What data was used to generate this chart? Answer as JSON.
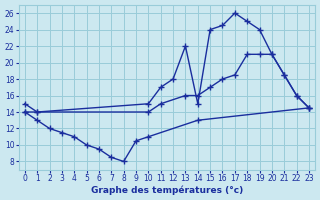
{
  "xlabel": "Graphe des températures (°c)",
  "background_color": "#cce8f0",
  "grid_color": "#99ccd9",
  "line_color": "#1a2e9e",
  "xlim": [
    -0.5,
    23.5
  ],
  "ylim": [
    7,
    27
  ],
  "xticks": [
    0,
    1,
    2,
    3,
    4,
    5,
    6,
    7,
    8,
    9,
    10,
    11,
    12,
    13,
    14,
    15,
    16,
    17,
    18,
    19,
    20,
    21,
    22,
    23
  ],
  "yticks": [
    8,
    10,
    12,
    14,
    16,
    18,
    20,
    22,
    24,
    26
  ],
  "series": [
    {
      "x": [
        0,
        1,
        10,
        11,
        12,
        13,
        14,
        15,
        16,
        17,
        18,
        19,
        20,
        21,
        22,
        23
      ],
      "y": [
        15,
        14,
        15,
        17,
        18,
        22,
        15,
        24,
        24.5,
        26,
        25,
        24,
        21,
        18.5,
        16,
        14.5
      ]
    },
    {
      "x": [
        0,
        1,
        10,
        11,
        13,
        14,
        15,
        16,
        17,
        18,
        19,
        20,
        21,
        22,
        23
      ],
      "y": [
        14,
        14,
        14,
        15,
        16,
        16,
        17,
        18,
        18.5,
        21,
        21,
        21,
        18.5,
        16,
        14.5
      ]
    },
    {
      "x": [
        0,
        1,
        2,
        3,
        4,
        5,
        6,
        7,
        8,
        9,
        10,
        14,
        23
      ],
      "y": [
        14,
        13,
        12,
        11.5,
        11,
        10,
        9.5,
        8.5,
        8,
        10.5,
        11,
        13,
        14.5
      ]
    }
  ]
}
